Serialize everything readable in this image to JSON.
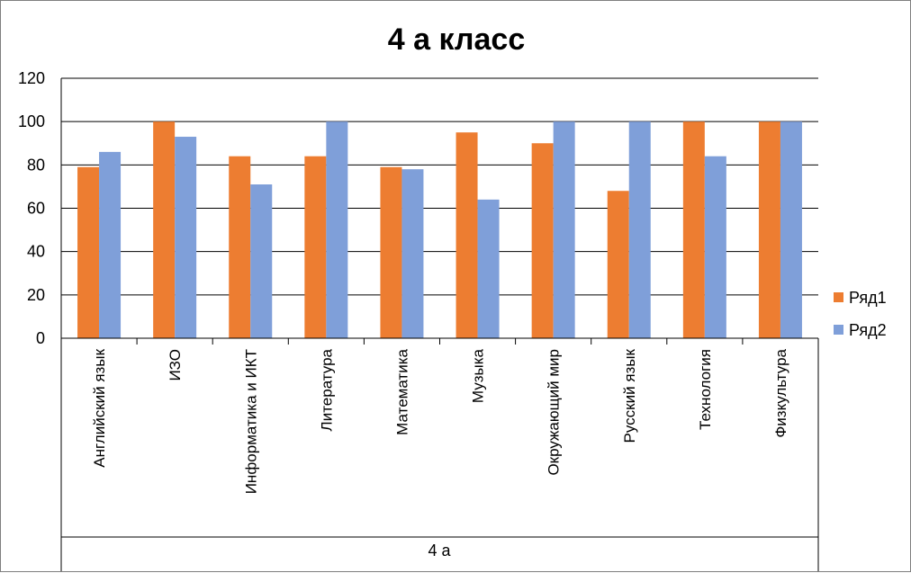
{
  "chart_data": {
    "type": "bar",
    "title": "4 а класс",
    "group_label": "4 а",
    "categories": [
      "Английский язык",
      "ИЗО",
      "Информатика и ИКТ",
      "Литература",
      "Математика",
      "Музыка",
      "Окружающий мир",
      "Русский язык",
      "Технология",
      "Физкультура"
    ],
    "series": [
      {
        "name": "Ряд1",
        "color": "#ED7D31",
        "values": [
          79,
          100,
          84,
          84,
          79,
          95,
          90,
          68,
          100,
          100
        ]
      },
      {
        "name": "Ряд2",
        "color": "#7F9FD9",
        "values": [
          86,
          93,
          71,
          100,
          78,
          64,
          100,
          100,
          84,
          100
        ]
      }
    ],
    "ylim": [
      0,
      120
    ],
    "yticks": [
      "0",
      "20",
      "40",
      "60",
      "80",
      "100",
      "120"
    ],
    "grid": true,
    "legend": "right"
  }
}
